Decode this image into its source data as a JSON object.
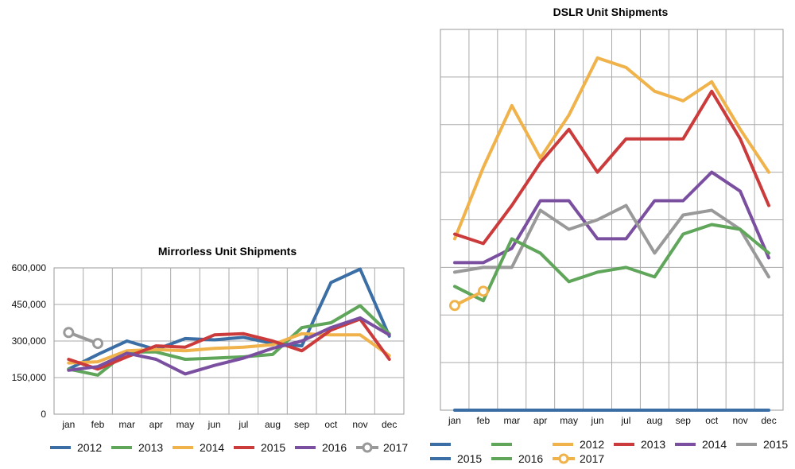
{
  "charts": {
    "mirrorless": {
      "title": "Mirrorless Unit Shipments",
      "legend": [
        "2012",
        "2013",
        "2014",
        "2015",
        "2016",
        "2017"
      ]
    },
    "dslr": {
      "title": "DSLR Unit Shipments",
      "legend": [
        "",
        "",
        "2012",
        "2013",
        "2014",
        "2015",
        "2015",
        "2016",
        "2017"
      ]
    }
  },
  "chart_data": [
    {
      "type": "line",
      "title": "Mirrorless Unit Shipments",
      "categories": [
        "jan",
        "feb",
        "mar",
        "apr",
        "may",
        "jun",
        "jul",
        "aug",
        "sep",
        "oct",
        "nov",
        "dec"
      ],
      "ylim": [
        0,
        600000
      ],
      "yticks": [
        "0",
        "150,000",
        "300,000",
        "450,000",
        "600,000"
      ],
      "grid": true,
      "legend_position": "bottom",
      "series": [
        {
          "name": "2012",
          "color": "#3a6ea5",
          "values": [
            185000,
            245000,
            300000,
            265000,
            310000,
            305000,
            315000,
            290000,
            280000,
            540000,
            595000,
            320000
          ]
        },
        {
          "name": "2013",
          "color": "#5fa55a",
          "values": [
            185000,
            160000,
            255000,
            255000,
            225000,
            230000,
            235000,
            245000,
            355000,
            375000,
            445000,
            330000
          ]
        },
        {
          "name": "2014",
          "color": "#f0b24a",
          "values": [
            210000,
            215000,
            260000,
            265000,
            260000,
            270000,
            275000,
            285000,
            330000,
            325000,
            325000,
            240000
          ]
        },
        {
          "name": "2015",
          "color": "#cc3b3b",
          "values": [
            225000,
            185000,
            235000,
            280000,
            275000,
            325000,
            330000,
            300000,
            260000,
            345000,
            390000,
            225000
          ]
        },
        {
          "name": "2016",
          "color": "#7b4fa0",
          "values": [
            180000,
            195000,
            250000,
            225000,
            165000,
            200000,
            230000,
            270000,
            300000,
            355000,
            395000,
            325000
          ]
        },
        {
          "name": "2017",
          "color": "#999999",
          "values": [
            335000,
            290000,
            null,
            null,
            null,
            null,
            null,
            null,
            null,
            null,
            null,
            null
          ]
        }
      ]
    },
    {
      "type": "line",
      "title": "DSLR Unit Shipments",
      "categories": [
        "jan",
        "feb",
        "mar",
        "apr",
        "may",
        "jun",
        "jul",
        "aug",
        "sep",
        "oct",
        "nov",
        "dec"
      ],
      "ylim": [
        0,
        8
      ],
      "grid": true,
      "legend_position": "bottom",
      "series": [
        {
          "name": "2012",
          "color": "#f0b24a",
          "values": [
            3.6,
            5.1,
            6.4,
            5.3,
            6.2,
            7.4,
            7.2,
            6.7,
            6.5,
            6.9,
            5.9,
            5.0
          ]
        },
        {
          "name": "2013",
          "color": "#cc3b3b",
          "values": [
            3.7,
            3.5,
            4.3,
            5.2,
            5.9,
            5.0,
            5.7,
            5.7,
            5.7,
            6.7,
            5.7,
            4.3
          ]
        },
        {
          "name": "2014",
          "color": "#7b4fa0",
          "values": [
            3.1,
            3.1,
            3.4,
            4.4,
            4.4,
            3.6,
            3.6,
            4.4,
            4.4,
            5.0,
            4.6,
            3.2
          ]
        },
        {
          "name": "2015",
          "color": "#999999",
          "values": [
            2.9,
            3.0,
            3.0,
            4.2,
            3.8,
            4.0,
            4.3,
            3.3,
            4.1,
            4.2,
            3.8,
            2.8
          ]
        },
        {
          "name": "2015",
          "color": "#3a6ea5",
          "values": [
            0,
            0,
            0,
            0,
            0,
            0,
            0,
            0,
            0,
            0,
            0,
            0
          ]
        },
        {
          "name": "2016",
          "color": "#5fa55a",
          "values": [
            2.6,
            2.3,
            3.6,
            3.3,
            2.7,
            2.9,
            3.0,
            2.8,
            3.7,
            3.9,
            3.8,
            3.3
          ]
        },
        {
          "name": "2017",
          "color": "#f0b24a",
          "values": [
            2.2,
            2.5,
            null,
            null,
            null,
            null,
            null,
            null,
            null,
            null,
            null,
            null
          ]
        }
      ]
    }
  ]
}
